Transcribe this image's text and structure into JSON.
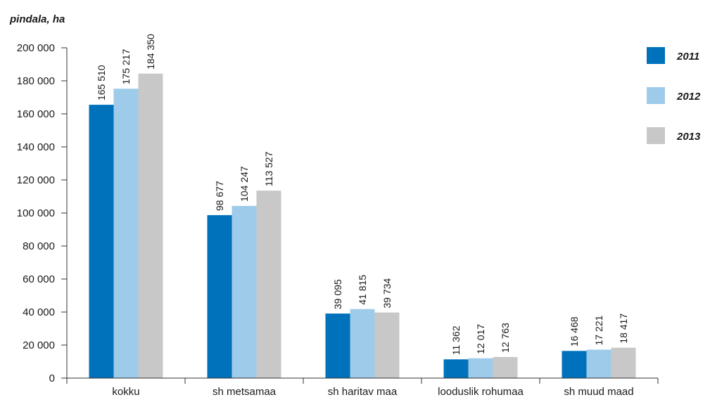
{
  "chart_data": {
    "type": "bar",
    "ylabel": "pindala, ha",
    "xlabel": "",
    "title": "",
    "ylim": [
      0,
      200000
    ],
    "yticks": [
      0,
      20000,
      40000,
      60000,
      80000,
      100000,
      120000,
      140000,
      160000,
      180000,
      200000
    ],
    "ytick_labels": [
      "0",
      "20 000",
      "40 000",
      "60 000",
      "80 000",
      "100 000",
      "120 000",
      "140 000",
      "160 000",
      "180 000",
      "200 000"
    ],
    "categories": [
      "kokku",
      "sh metsamaa",
      "sh haritav maa",
      "looduslik rohumaa",
      "sh muud maad"
    ],
    "series": [
      {
        "name": "2011",
        "color": "#0072bc",
        "values": [
          165510,
          98677,
          39095,
          11362,
          16468
        ],
        "labels": [
          "165 510",
          "98 677",
          "39 095",
          "11 362",
          "16 468"
        ]
      },
      {
        "name": "2012",
        "color": "#9ecbea",
        "values": [
          175217,
          104247,
          41815,
          12017,
          17221
        ],
        "labels": [
          "175 217",
          "104 247",
          "41 815",
          "12 017",
          "17 221"
        ]
      },
      {
        "name": "2013",
        "color": "#c8c8c8",
        "values": [
          184350,
          113527,
          39734,
          12763,
          18417
        ],
        "labels": [
          "184 350",
          "113 527",
          "39 734",
          "12 763",
          "18 417"
        ]
      }
    ],
    "legend_position": "top-right",
    "grid": false
  }
}
